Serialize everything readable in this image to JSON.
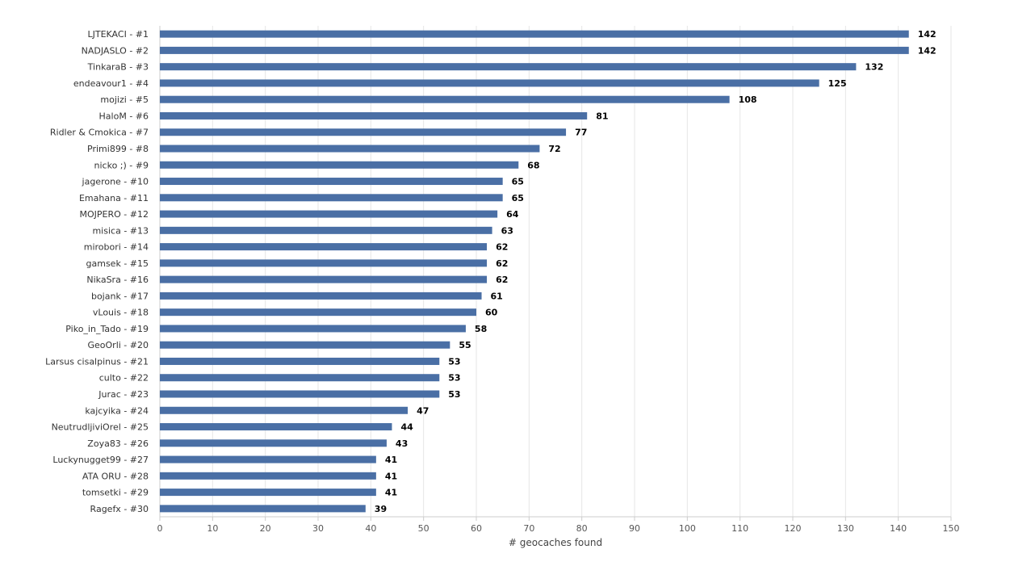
{
  "chart_data": {
    "type": "bar",
    "orientation": "horizontal",
    "categories": [
      "LJTEKACI - #1",
      "NADJASLO - #2",
      "TinkaraB - #3",
      "endeavour1 - #4",
      "mojizi - #5",
      "HaloM - #6",
      "Ridler & Cmokica - #7",
      "Primi899 - #8",
      "nicko ;) - #9",
      "jagerone - #10",
      "Emahana - #11",
      "MOJPERO - #12",
      "misica - #13",
      "mirobori - #14",
      "gamsek - #15",
      "NikaSra - #16",
      "bojank - #17",
      "vLouis - #18",
      "Piko_in_Tado - #19",
      "GeoOrli - #20",
      "Larsus cisalpinus - #21",
      "culto - #22",
      "Jurac - #23",
      "kajcyika - #24",
      "NeutrudljiviOrel - #25",
      "Zoya83 - #26",
      "Luckynugget99 - #27",
      "ATA ORU - #28",
      "tomsetki - #29",
      "Ragefx - #30"
    ],
    "values": [
      142,
      142,
      132,
      125,
      108,
      81,
      77,
      72,
      68,
      65,
      65,
      64,
      63,
      62,
      62,
      62,
      61,
      60,
      58,
      55,
      53,
      53,
      53,
      47,
      44,
      43,
      41,
      41,
      41,
      39
    ],
    "xlabel": "# geocaches found",
    "xlim": [
      0,
      150
    ],
    "xticks": [
      0,
      10,
      20,
      30,
      40,
      50,
      60,
      70,
      80,
      90,
      100,
      110,
      120,
      130,
      140,
      150
    ],
    "grid": true,
    "bar_color": "#4a6fa5",
    "data_labels": true
  }
}
